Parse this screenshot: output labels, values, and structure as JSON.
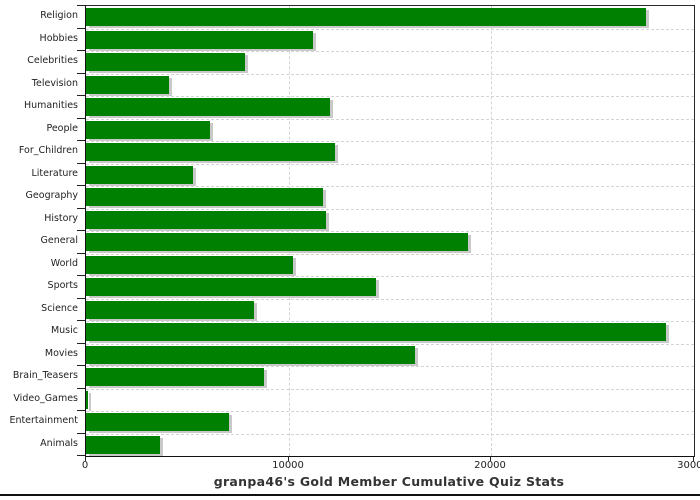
{
  "page": {
    "background": "#ffffff"
  },
  "chart_data": {
    "type": "bar",
    "orientation": "horizontal",
    "title": "granpa46's Gold Member Cumulative Quiz Stats",
    "categories": [
      "Religion",
      "Hobbies",
      "Celebrities",
      "Television",
      "Humanities",
      "People",
      "For_Children",
      "Literature",
      "Geography",
      "History",
      "General",
      "World",
      "Sports",
      "Science",
      "Music",
      "Movies",
      "Brain_Teasers",
      "Video_Games",
      "Entertainment",
      "Animals"
    ],
    "values": [
      27650,
      11200,
      7850,
      4100,
      12050,
      6100,
      12300,
      5300,
      11700,
      11850,
      18850,
      10200,
      14300,
      8300,
      28600,
      16250,
      8800,
      100,
      7050,
      3650
    ],
    "xlabel": "",
    "ylabel": "",
    "xlim": [
      0,
      30000
    ],
    "x_ticks": [
      0,
      10000,
      20000,
      30000
    ],
    "x_tick_labels": [
      "0",
      "10000",
      "20000",
      "30000"
    ],
    "grid": "dashed",
    "legend": "none",
    "bar_color": "#008000",
    "bar_shadow_color": "#c9c9c9",
    "gridline_color": "#d4d4d4",
    "axis_color": "#222222",
    "text_color": "#222222",
    "title_color": "#333333"
  }
}
